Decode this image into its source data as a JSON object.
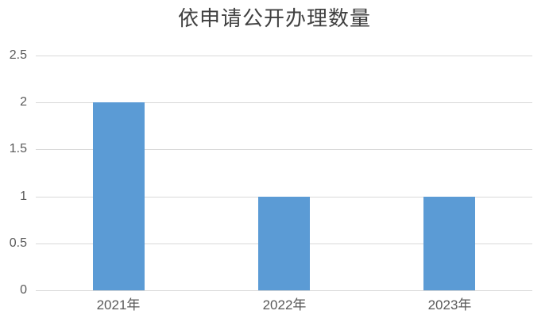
{
  "chart_data": {
    "type": "bar",
    "title": "依申请公开办理数量",
    "categories": [
      "2021年",
      "2022年",
      "2023年"
    ],
    "values": [
      2,
      1,
      1
    ],
    "xlabel": "",
    "ylabel": "",
    "ylim": [
      0,
      2.5
    ],
    "yticks": [
      0,
      0.5,
      1,
      1.5,
      2,
      2.5
    ],
    "grid": true,
    "legend": false,
    "colors": {
      "bar": "#5B9BD5",
      "gridline": "#D9D9D9",
      "axis_line": "#D6D6D6",
      "tick_label": "#595959",
      "title": "#404040",
      "background": "#FFFFFF"
    }
  }
}
